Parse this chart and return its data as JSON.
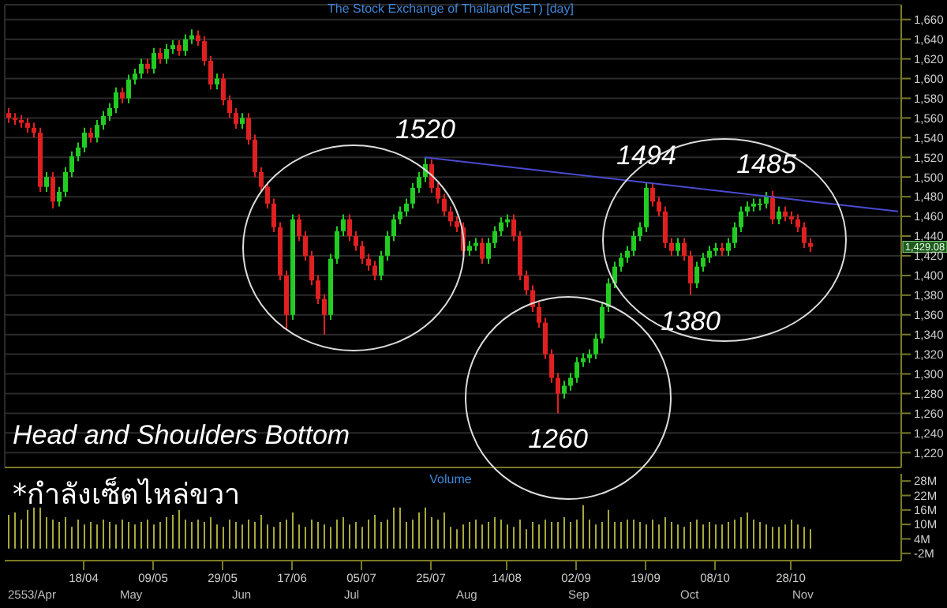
{
  "chart_data": [
    {
      "type": "candlestick",
      "title": "The Stock Exchange of Thailand(SET) [day]",
      "categories": [
        null,
        null,
        null,
        null,
        null,
        null,
        null,
        null,
        null,
        null,
        null,
        null,
        null,
        null,
        null,
        null,
        null,
        null,
        null,
        null,
        null,
        null,
        null,
        null,
        null,
        null,
        null,
        null,
        null,
        null,
        null,
        null,
        null,
        null,
        null,
        null,
        null,
        null,
        null,
        null,
        null,
        null,
        null,
        null,
        null,
        null,
        null,
        null,
        null,
        null,
        null,
        null,
        null,
        null,
        null,
        null,
        null,
        null,
        null,
        null,
        null,
        null,
        null,
        null,
        null,
        null,
        null,
        null,
        null,
        null,
        null,
        null,
        null,
        null,
        null,
        null,
        null,
        null,
        null,
        null,
        null,
        null,
        null,
        null,
        null,
        null,
        null,
        null,
        null,
        null,
        null,
        null,
        null,
        null,
        null,
        null,
        null,
        null,
        null,
        null,
        null,
        null,
        null,
        null,
        null,
        null,
        null,
        null,
        null,
        null,
        null,
        null,
        null,
        null,
        null,
        null,
        null,
        null,
        null,
        null,
        null,
        null,
        null,
        null,
        null,
        null,
        null,
        null,
        null,
        null,
        null,
        null,
        null,
        null,
        null,
        null,
        null,
        null,
        null,
        null,
        null,
        null
      ],
      "ohlc": [
        [
          1565,
          1570,
          1555,
          1560
        ],
        [
          1560,
          1565,
          1553,
          1558
        ],
        [
          1558,
          1563,
          1550,
          1555
        ],
        [
          1555,
          1560,
          1545,
          1550
        ],
        [
          1550,
          1555,
          1540,
          1545
        ],
        [
          1545,
          1550,
          1485,
          1490
        ],
        [
          1490,
          1505,
          1485,
          1500
        ],
        [
          1500,
          1505,
          1468,
          1475
        ],
        [
          1475,
          1490,
          1470,
          1485
        ],
        [
          1485,
          1510,
          1480,
          1505
        ],
        [
          1505,
          1526,
          1500,
          1521
        ],
        [
          1521,
          1535,
          1516,
          1530
        ],
        [
          1530,
          1550,
          1525,
          1545
        ],
        [
          1545,
          1550,
          1535,
          1540
        ],
        [
          1540,
          1558,
          1535,
          1553
        ],
        [
          1553,
          1567,
          1548,
          1562
        ],
        [
          1562,
          1575,
          1557,
          1570
        ],
        [
          1570,
          1591,
          1565,
          1586
        ],
        [
          1586,
          1591,
          1575,
          1580
        ],
        [
          1580,
          1604,
          1575,
          1599
        ],
        [
          1599,
          1610,
          1594,
          1605
        ],
        [
          1605,
          1620,
          1600,
          1615
        ],
        [
          1615,
          1620,
          1605,
          1610
        ],
        [
          1610,
          1631,
          1605,
          1626
        ],
        [
          1626,
          1631,
          1615,
          1620
        ],
        [
          1620,
          1635,
          1615,
          1630
        ],
        [
          1630,
          1639,
          1625,
          1634
        ],
        [
          1634,
          1639,
          1623,
          1628
        ],
        [
          1628,
          1645,
          1623,
          1640
        ],
        [
          1640,
          1650,
          1635,
          1644
        ],
        [
          1644,
          1649,
          1633,
          1638
        ],
        [
          1638,
          1643,
          1613,
          1618
        ],
        [
          1618,
          1623,
          1589,
          1594
        ],
        [
          1594,
          1605,
          1589,
          1600
        ],
        [
          1600,
          1605,
          1573,
          1578
        ],
        [
          1578,
          1583,
          1560,
          1565
        ],
        [
          1565,
          1570,
          1549,
          1554
        ],
        [
          1554,
          1565,
          1549,
          1560
        ],
        [
          1560,
          1565,
          1533,
          1538
        ],
        [
          1538,
          1543,
          1500,
          1505
        ],
        [
          1505,
          1510,
          1485,
          1490
        ],
        [
          1490,
          1495,
          1468,
          1473
        ],
        [
          1473,
          1478,
          1444,
          1449
        ],
        [
          1449,
          1454,
          1395,
          1400
        ],
        [
          1400,
          1405,
          1345,
          1360
        ],
        [
          1360,
          1462,
          1355,
          1457
        ],
        [
          1457,
          1462,
          1435,
          1440
        ],
        [
          1440,
          1445,
          1415,
          1420
        ],
        [
          1420,
          1425,
          1390,
          1395
        ],
        [
          1395,
          1400,
          1371,
          1376
        ],
        [
          1376,
          1381,
          1340,
          1360
        ],
        [
          1360,
          1422,
          1355,
          1417
        ],
        [
          1417,
          1450,
          1412,
          1445
        ],
        [
          1445,
          1462,
          1440,
          1457
        ],
        [
          1457,
          1462,
          1435,
          1440
        ],
        [
          1440,
          1445,
          1425,
          1430
        ],
        [
          1430,
          1435,
          1412,
          1417
        ],
        [
          1417,
          1422,
          1405,
          1410
        ],
        [
          1410,
          1415,
          1395,
          1400
        ],
        [
          1400,
          1425,
          1395,
          1420
        ],
        [
          1420,
          1445,
          1415,
          1440
        ],
        [
          1440,
          1462,
          1435,
          1457
        ],
        [
          1457,
          1470,
          1452,
          1465
        ],
        [
          1465,
          1478,
          1460,
          1473
        ],
        [
          1473,
          1494,
          1468,
          1489
        ],
        [
          1489,
          1505,
          1484,
          1500
        ],
        [
          1500,
          1520,
          1495,
          1513
        ],
        [
          1513,
          1518,
          1484,
          1489
        ],
        [
          1489,
          1494,
          1473,
          1478
        ],
        [
          1478,
          1483,
          1460,
          1465
        ],
        [
          1465,
          1470,
          1450,
          1455
        ],
        [
          1455,
          1460,
          1444,
          1449
        ],
        [
          1449,
          1454,
          1420,
          1425
        ],
        [
          1425,
          1435,
          1420,
          1430
        ],
        [
          1430,
          1438,
          1425,
          1433
        ],
        [
          1433,
          1438,
          1412,
          1417
        ],
        [
          1417,
          1438,
          1412,
          1433
        ],
        [
          1433,
          1450,
          1428,
          1445
        ],
        [
          1445,
          1459,
          1440,
          1454
        ],
        [
          1454,
          1462,
          1449,
          1457
        ],
        [
          1457,
          1462,
          1435,
          1440
        ],
        [
          1440,
          1445,
          1395,
          1400
        ],
        [
          1400,
          1405,
          1380,
          1385
        ],
        [
          1385,
          1390,
          1363,
          1368
        ],
        [
          1368,
          1373,
          1347,
          1352
        ],
        [
          1352,
          1357,
          1315,
          1320
        ],
        [
          1320,
          1325,
          1291,
          1296
        ],
        [
          1296,
          1301,
          1260,
          1280
        ],
        [
          1280,
          1293,
          1275,
          1288
        ],
        [
          1288,
          1301,
          1283,
          1296
        ],
        [
          1296,
          1317,
          1291,
          1312
        ],
        [
          1312,
          1321,
          1307,
          1316
        ],
        [
          1316,
          1325,
          1311,
          1320
        ],
        [
          1320,
          1341,
          1315,
          1336
        ],
        [
          1336,
          1373,
          1331,
          1368
        ],
        [
          1368,
          1397,
          1363,
          1392
        ],
        [
          1392,
          1414,
          1387,
          1409
        ],
        [
          1409,
          1423,
          1404,
          1418
        ],
        [
          1418,
          1430,
          1413,
          1425
        ],
        [
          1425,
          1445,
          1420,
          1440
        ],
        [
          1440,
          1454,
          1435,
          1449
        ],
        [
          1449,
          1494,
          1444,
          1489
        ],
        [
          1489,
          1494,
          1470,
          1475
        ],
        [
          1475,
          1480,
          1460,
          1465
        ],
        [
          1465,
          1470,
          1428,
          1433
        ],
        [
          1433,
          1438,
          1420,
          1425
        ],
        [
          1425,
          1438,
          1420,
          1433
        ],
        [
          1433,
          1438,
          1415,
          1420
        ],
        [
          1420,
          1425,
          1380,
          1392
        ],
        [
          1392,
          1414,
          1387,
          1409
        ],
        [
          1409,
          1423,
          1404,
          1418
        ],
        [
          1418,
          1430,
          1413,
          1425
        ],
        [
          1425,
          1433,
          1420,
          1428
        ],
        [
          1428,
          1433,
          1420,
          1425
        ],
        [
          1425,
          1438,
          1420,
          1433
        ],
        [
          1433,
          1454,
          1428,
          1449
        ],
        [
          1449,
          1470,
          1444,
          1465
        ],
        [
          1465,
          1475,
          1460,
          1470
        ],
        [
          1470,
          1478,
          1465,
          1473
        ],
        [
          1473,
          1478,
          1466,
          1473
        ],
        [
          1473,
          1485,
          1468,
          1481
        ],
        [
          1481,
          1486,
          1452,
          1457
        ],
        [
          1457,
          1470,
          1452,
          1465
        ],
        [
          1465,
          1470,
          1455,
          1460
        ],
        [
          1460,
          1465,
          1452,
          1457
        ],
        [
          1457,
          1462,
          1444,
          1449
        ],
        [
          1449,
          1454,
          1428,
          1433
        ],
        [
          1433,
          1438,
          1424,
          1429.08
        ],
        null,
        null,
        null,
        null,
        null,
        null,
        null,
        null,
        null,
        null,
        null,
        null,
        null,
        null
      ],
      "colors": [
        "#e02020",
        "#e02020",
        "#e02020",
        "#e02020",
        "#e02020",
        "#e02020",
        "#22cc22",
        "#e02020",
        "#22cc22",
        "#22cc22",
        "#22cc22",
        "#22cc22",
        "#22cc22",
        "#e02020",
        "#22cc22",
        "#22cc22",
        "#22cc22",
        "#22cc22",
        "#e02020",
        "#22cc22",
        "#22cc22",
        "#22cc22",
        "#e02020",
        "#22cc22",
        "#e02020",
        "#22cc22",
        "#22cc22",
        "#e02020",
        "#22cc22",
        "#22cc22",
        "#e02020",
        "#e02020",
        "#e02020",
        "#22cc22",
        "#e02020",
        "#e02020",
        "#e02020",
        "#22cc22",
        "#e02020",
        "#e02020",
        "#e02020",
        "#e02020",
        "#e02020",
        "#e02020",
        "#e02020",
        "#22cc22",
        "#e02020",
        "#e02020",
        "#e02020",
        "#e02020",
        "#e02020",
        "#22cc22",
        "#22cc22",
        "#22cc22",
        "#e02020",
        "#e02020",
        "#e02020",
        "#e02020",
        "#e02020",
        "#22cc22",
        "#22cc22",
        "#22cc22",
        "#22cc22",
        "#22cc22",
        "#22cc22",
        "#22cc22",
        "#22cc22",
        "#e02020",
        "#e02020",
        "#e02020",
        "#e02020",
        "#e02020",
        "#e02020",
        "#22cc22",
        "#22cc22",
        "#e02020",
        "#22cc22",
        "#22cc22",
        "#22cc22",
        "#22cc22",
        "#e02020",
        "#e02020",
        "#e02020",
        "#e02020",
        "#e02020",
        "#e02020",
        "#e02020",
        "#e02020",
        "#22cc22",
        "#22cc22",
        "#22cc22",
        "#22cc22",
        "#22cc22",
        "#22cc22",
        "#22cc22",
        "#22cc22",
        "#22cc22",
        "#22cc22",
        "#22cc22",
        "#22cc22",
        "#22cc22",
        "#22cc22",
        "#e02020",
        "#e02020",
        "#e02020",
        "#e02020",
        "#22cc22",
        "#e02020",
        "#e02020",
        "#22cc22",
        "#22cc22",
        "#22cc22",
        "#22cc22",
        "#e02020",
        "#22cc22",
        "#22cc22",
        "#22cc22",
        "#22cc22",
        "#22cc22",
        "#22cc22",
        "#22cc22",
        "#e02020",
        "#22cc22",
        "#e02020",
        "#e02020",
        "#e02020",
        "#e02020",
        "#e02020",
        null,
        null,
        null,
        null,
        null,
        null,
        null,
        null,
        null,
        null,
        null,
        null,
        null,
        null
      ],
      "value_labels": [
        null,
        null,
        null,
        null,
        null,
        null,
        null,
        null,
        null,
        null,
        null,
        null,
        null,
        null,
        null,
        null,
        null,
        null,
        null,
        null,
        null,
        null,
        null,
        null,
        null,
        null,
        null,
        null,
        null,
        null,
        null,
        null,
        null,
        null,
        null,
        null,
        null,
        null,
        null,
        null,
        null,
        null,
        null,
        null,
        null,
        null,
        null,
        null,
        null,
        null,
        null,
        null,
        null,
        null,
        null,
        null,
        null,
        null,
        null,
        null,
        null,
        null,
        null,
        null,
        null,
        null,
        "1520",
        null,
        null,
        null,
        null,
        null,
        null,
        null,
        null,
        null,
        null,
        null,
        null,
        null,
        null,
        null,
        null,
        null,
        null,
        null,
        null,
        "1260",
        null,
        null,
        null,
        null,
        null,
        null,
        null,
        null,
        null,
        null,
        null,
        null,
        null,
        "1494",
        null,
        null,
        null,
        null,
        null,
        null,
        "1380",
        null,
        null,
        null,
        null,
        null,
        null,
        null,
        null,
        null,
        null,
        null,
        "1485",
        null,
        null,
        null,
        null,
        null,
        null,
        null,
        null,
        null,
        null,
        null,
        null,
        null,
        null,
        null,
        null,
        null,
        null,
        null,
        null,
        null
      ],
      "series": [
        {
          "type": "line",
          "color": "#4a4ad0",
          "values": [
            null,
            null,
            null,
            null,
            null,
            null,
            null,
            null,
            null,
            null,
            null,
            null,
            null,
            null,
            null,
            null,
            null,
            null,
            null,
            null,
            null,
            null,
            null,
            null,
            null,
            null,
            null,
            null,
            null,
            null,
            null,
            null,
            null,
            null,
            null,
            null,
            null,
            null,
            null,
            null,
            null,
            null,
            null,
            null,
            null,
            null,
            null,
            null,
            null,
            null,
            null,
            null,
            null,
            null,
            null,
            null,
            null,
            null,
            null,
            null,
            null,
            null,
            null,
            null,
            null,
            null,
            1520,
            null,
            null,
            null,
            null,
            null,
            null,
            null,
            null,
            null,
            null,
            null,
            null,
            null,
            null,
            null,
            null,
            null,
            null,
            null,
            null,
            null,
            null,
            null,
            null,
            null,
            null,
            null,
            null,
            null,
            null,
            null,
            null,
            null,
            null,
            null,
            null,
            null,
            null,
            null,
            null,
            null,
            null,
            null,
            null,
            null,
            null,
            null,
            null,
            null,
            null,
            null,
            null,
            null,
            null,
            null,
            null,
            null,
            null,
            null,
            null,
            null,
            null,
            null,
            null,
            null,
            null,
            null,
            null,
            null,
            null,
            null,
            null,
            null,
            null,
            1465
          ]
        }
      ],
      "ylim": [
        1205,
        1675
      ],
      "yticks": [
        {
          "value": 1220,
          "label": "1,220"
        },
        {
          "value": 1240,
          "label": "1,240"
        },
        {
          "value": 1260,
          "label": "1,260"
        },
        {
          "value": 1280,
          "label": "1,280"
        },
        {
          "value": 1300,
          "label": "1,300"
        },
        {
          "value": 1320,
          "label": "1,320"
        },
        {
          "value": 1340,
          "label": "1,340"
        },
        {
          "value": 1360,
          "label": "1,360"
        },
        {
          "value": 1380,
          "label": "1,380"
        },
        {
          "value": 1400,
          "label": "1,400"
        },
        {
          "value": 1420,
          "label": "1,420"
        },
        {
          "value": 1440,
          "label": "1,440"
        },
        {
          "value": 1460,
          "label": "1,460"
        },
        {
          "value": 1480,
          "label": "1,480"
        },
        {
          "value": 1500,
          "label": "1,500"
        },
        {
          "value": 1520,
          "label": "1,520"
        },
        {
          "value": 1540,
          "label": "1,540"
        },
        {
          "value": 1560,
          "label": "1,560"
        },
        {
          "value": 1580,
          "label": "1,580"
        },
        {
          "value": 1600,
          "label": "1,600"
        },
        {
          "value": 1620,
          "label": "1,620"
        },
        {
          "value": 1640,
          "label": "1,640"
        },
        {
          "value": 1660,
          "label": "1,660"
        }
      ],
      "grid": true,
      "tick_labels": "y",
      "annotations": [
        "Head and Shoulders Bottom",
        "1,429.08"
      ]
    },
    {
      "type": "bar",
      "title": "Volume",
      "categories": [
        null,
        null,
        null,
        null,
        null,
        null,
        null,
        null,
        null,
        null,
        null,
        null,
        "18/04",
        null,
        null,
        null,
        null,
        null,
        null,
        null,
        null,
        null,
        null,
        "09/05",
        null,
        null,
        null,
        null,
        null,
        null,
        null,
        null,
        null,
        null,
        "29/05",
        null,
        null,
        null,
        null,
        null,
        null,
        null,
        null,
        null,
        null,
        "17/06",
        null,
        null,
        null,
        null,
        null,
        null,
        null,
        null,
        null,
        null,
        "05/07",
        null,
        null,
        null,
        null,
        null,
        null,
        null,
        null,
        null,
        null,
        "25/07",
        null,
        null,
        null,
        null,
        null,
        null,
        null,
        null,
        null,
        null,
        null,
        "14/08",
        null,
        null,
        null,
        null,
        null,
        null,
        null,
        null,
        null,
        null,
        "02/09",
        null,
        null,
        null,
        null,
        null,
        null,
        null,
        null,
        null,
        null,
        "19/09",
        null,
        null,
        null,
        null,
        null,
        null,
        null,
        null,
        null,
        null,
        "08/10",
        null,
        null,
        null,
        null,
        null,
        null,
        null,
        null,
        null,
        null,
        null,
        "28/10",
        null,
        null,
        null,
        null,
        null,
        null,
        null,
        null,
        null,
        null,
        null,
        null,
        null,
        null,
        null,
        null,
        null
      ],
      "values": [
        14,
        15,
        12,
        16,
        17,
        17,
        13,
        12,
        11,
        13,
        9,
        12,
        10,
        11,
        10,
        12,
        11,
        10,
        12,
        11,
        10,
        11,
        12,
        10,
        11,
        13,
        14,
        16,
        12,
        11,
        12,
        11,
        13,
        10,
        9,
        12,
        11,
        10,
        12,
        11,
        14,
        10,
        9,
        11,
        12,
        15,
        10,
        9,
        12,
        11,
        10,
        9,
        12,
        13,
        10,
        11,
        9,
        12,
        14,
        11,
        12,
        17,
        17,
        11,
        12,
        15,
        17,
        13,
        12,
        15,
        9,
        8,
        10,
        11,
        12,
        10,
        11,
        13,
        12,
        10,
        9,
        12,
        8,
        11,
        10,
        12,
        11,
        11,
        13,
        11,
        12,
        18,
        12,
        10,
        11,
        16,
        11,
        11,
        12,
        12,
        11,
        10,
        12,
        10,
        13,
        11,
        10,
        9,
        11,
        12,
        10,
        11,
        10,
        10,
        11,
        12,
        13,
        15,
        12,
        11,
        10,
        9,
        9,
        10,
        12,
        10,
        9,
        8,
        null,
        null,
        null,
        null,
        null,
        null,
        null,
        null,
        null,
        null,
        null,
        null,
        null,
        null
      ],
      "color": "#a8a83c",
      "ylim": [
        -5,
        31
      ],
      "yticks": [
        {
          "value": -2,
          "label": "-2M"
        },
        {
          "value": 4,
          "label": "4M"
        },
        {
          "value": 10,
          "label": "10M"
        },
        {
          "value": 16,
          "label": "16M"
        },
        {
          "value": 22,
          "label": "22M"
        },
        {
          "value": 28,
          "label": "28M"
        }
      ],
      "annotations": [
        "*กำลังเซ็ตไหล่ขวา",
        "2553/Apr",
        "May",
        "Jun",
        "Jul",
        "Aug",
        "Sep",
        "Oct",
        "Nov"
      ]
    }
  ]
}
